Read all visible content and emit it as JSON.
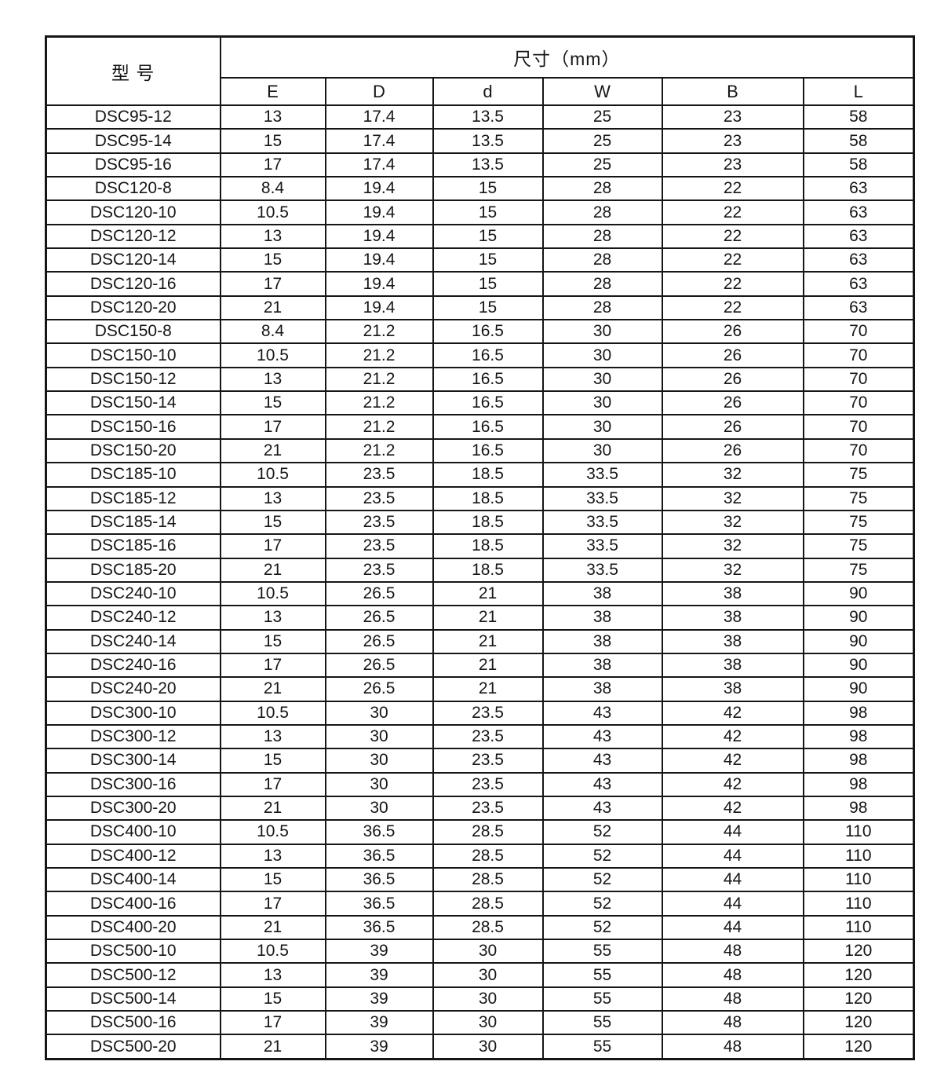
{
  "table": {
    "model_header": "型 号",
    "size_header": "尺寸（mm）",
    "columns": [
      "E",
      "D",
      "d",
      "W",
      "B",
      "L"
    ],
    "rows": [
      [
        "DSC95-12",
        "13",
        "17.4",
        "13.5",
        "25",
        "23",
        "58"
      ],
      [
        "DSC95-14",
        "15",
        "17.4",
        "13.5",
        "25",
        "23",
        "58"
      ],
      [
        "DSC95-16",
        "17",
        "17.4",
        "13.5",
        "25",
        "23",
        "58"
      ],
      [
        "DSC120-8",
        "8.4",
        "19.4",
        "15",
        "28",
        "22",
        "63"
      ],
      [
        "DSC120-10",
        "10.5",
        "19.4",
        "15",
        "28",
        "22",
        "63"
      ],
      [
        "DSC120-12",
        "13",
        "19.4",
        "15",
        "28",
        "22",
        "63"
      ],
      [
        "DSC120-14",
        "15",
        "19.4",
        "15",
        "28",
        "22",
        "63"
      ],
      [
        "DSC120-16",
        "17",
        "19.4",
        "15",
        "28",
        "22",
        "63"
      ],
      [
        "DSC120-20",
        "21",
        "19.4",
        "15",
        "28",
        "22",
        "63"
      ],
      [
        "DSC150-8",
        "8.4",
        "21.2",
        "16.5",
        "30",
        "26",
        "70"
      ],
      [
        "DSC150-10",
        "10.5",
        "21.2",
        "16.5",
        "30",
        "26",
        "70"
      ],
      [
        "DSC150-12",
        "13",
        "21.2",
        "16.5",
        "30",
        "26",
        "70"
      ],
      [
        "DSC150-14",
        "15",
        "21.2",
        "16.5",
        "30",
        "26",
        "70"
      ],
      [
        "DSC150-16",
        "17",
        "21.2",
        "16.5",
        "30",
        "26",
        "70"
      ],
      [
        "DSC150-20",
        "21",
        "21.2",
        "16.5",
        "30",
        "26",
        "70"
      ],
      [
        "DSC185-10",
        "10.5",
        "23.5",
        "18.5",
        "33.5",
        "32",
        "75"
      ],
      [
        "DSC185-12",
        "13",
        "23.5",
        "18.5",
        "33.5",
        "32",
        "75"
      ],
      [
        "DSC185-14",
        "15",
        "23.5",
        "18.5",
        "33.5",
        "32",
        "75"
      ],
      [
        "DSC185-16",
        "17",
        "23.5",
        "18.5",
        "33.5",
        "32",
        "75"
      ],
      [
        "DSC185-20",
        "21",
        "23.5",
        "18.5",
        "33.5",
        "32",
        "75"
      ],
      [
        "DSC240-10",
        "10.5",
        "26.5",
        "21",
        "38",
        "38",
        "90"
      ],
      [
        "DSC240-12",
        "13",
        "26.5",
        "21",
        "38",
        "38",
        "90"
      ],
      [
        "DSC240-14",
        "15",
        "26.5",
        "21",
        "38",
        "38",
        "90"
      ],
      [
        "DSC240-16",
        "17",
        "26.5",
        "21",
        "38",
        "38",
        "90"
      ],
      [
        "DSC240-20",
        "21",
        "26.5",
        "21",
        "38",
        "38",
        "90"
      ],
      [
        "DSC300-10",
        "10.5",
        "30",
        "23.5",
        "43",
        "42",
        "98"
      ],
      [
        "DSC300-12",
        "13",
        "30",
        "23.5",
        "43",
        "42",
        "98"
      ],
      [
        "DSC300-14",
        "15",
        "30",
        "23.5",
        "43",
        "42",
        "98"
      ],
      [
        "DSC300-16",
        "17",
        "30",
        "23.5",
        "43",
        "42",
        "98"
      ],
      [
        "DSC300-20",
        "21",
        "30",
        "23.5",
        "43",
        "42",
        "98"
      ],
      [
        "DSC400-10",
        "10.5",
        "36.5",
        "28.5",
        "52",
        "44",
        "110"
      ],
      [
        "DSC400-12",
        "13",
        "36.5",
        "28.5",
        "52",
        "44",
        "110"
      ],
      [
        "DSC400-14",
        "15",
        "36.5",
        "28.5",
        "52",
        "44",
        "110"
      ],
      [
        "DSC400-16",
        "17",
        "36.5",
        "28.5",
        "52",
        "44",
        "110"
      ],
      [
        "DSC400-20",
        "21",
        "36.5",
        "28.5",
        "52",
        "44",
        "110"
      ],
      [
        "DSC500-10",
        "10.5",
        "39",
        "30",
        "55",
        "48",
        "120"
      ],
      [
        "DSC500-12",
        "13",
        "39",
        "30",
        "55",
        "48",
        "120"
      ],
      [
        "DSC500-14",
        "15",
        "39",
        "30",
        "55",
        "48",
        "120"
      ],
      [
        "DSC500-16",
        "17",
        "39",
        "30",
        "55",
        "48",
        "120"
      ],
      [
        "DSC500-20",
        "21",
        "39",
        "30",
        "55",
        "48",
        "120"
      ]
    ]
  }
}
